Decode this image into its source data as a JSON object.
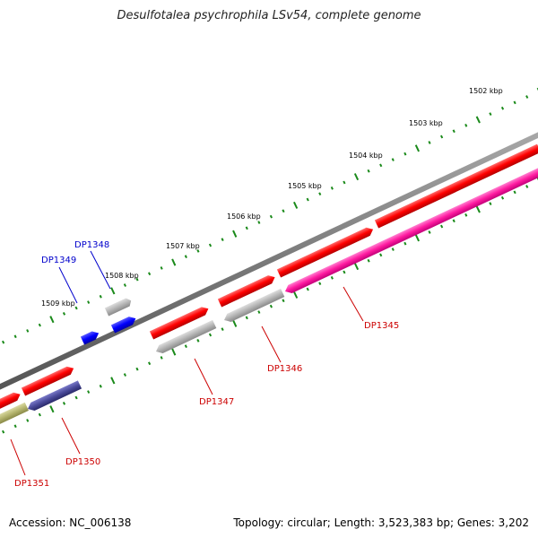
{
  "title": "Desulfotalea psychrophila LSv54, complete genome",
  "footer": {
    "accession": "Accession: NC_006138",
    "summary": "Topology: circular; Length: 3,523,383 bp; Genes: 3,202"
  },
  "ruler": {
    "tick_labels": [
      "1502 kbp",
      "1503 kbp",
      "1504 kbp",
      "1505 kbp",
      "1506 kbp",
      "1507 kbp",
      "1508 kbp",
      "1509 kbp"
    ]
  },
  "genes": [
    {
      "id": "DP1345",
      "color": "#cc0000"
    },
    {
      "id": "DP1346",
      "color": "#cc0000"
    },
    {
      "id": "DP1347",
      "color": "#cc0000"
    },
    {
      "id": "DP1348",
      "color": "#0000cc"
    },
    {
      "id": "DP1349",
      "color": "#0000cc"
    },
    {
      "id": "DP1350",
      "color": "#cc0000"
    },
    {
      "id": "DP1351",
      "color": "#cc0000"
    }
  ],
  "colors": {
    "forward_strand": "#ff0000",
    "reverse_grey": "#b4b4b4",
    "reverse_magenta": "#ff1aa0",
    "reverse_navy": "#4a4a9a",
    "reverse_olive": "#b4b46e",
    "blue_feature": "#0000ff",
    "ruler_ticks": "#1a8a1a",
    "backbone": "#7a7a7a"
  }
}
